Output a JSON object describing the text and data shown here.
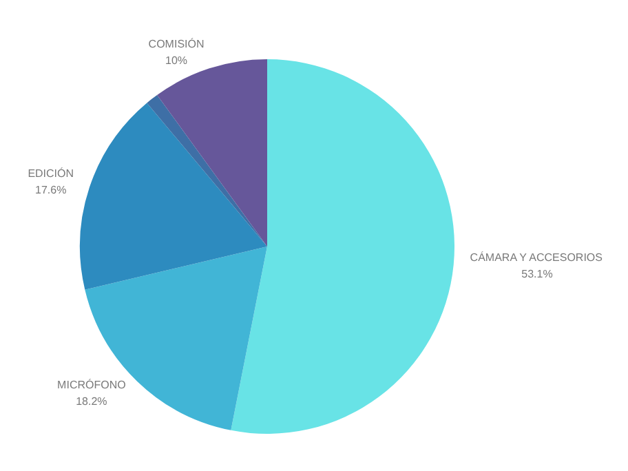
{
  "chart_data": {
    "type": "pie",
    "categories": [
      "CÁMARA Y ACCESORIOS",
      "MICRÓFONO",
      "EDICIÓN",
      null,
      "COMISIÓN"
    ],
    "values": [
      53.1,
      18.2,
      17.6,
      1.1,
      10
    ],
    "value_labels": [
      "53.1%",
      "18.2%",
      "17.6%",
      null,
      "10%"
    ],
    "colors": [
      "#68e3e6",
      "#41b5d6",
      "#2d8bbf",
      "#3e6fa6",
      "#66579a"
    ],
    "legend": false
  }
}
